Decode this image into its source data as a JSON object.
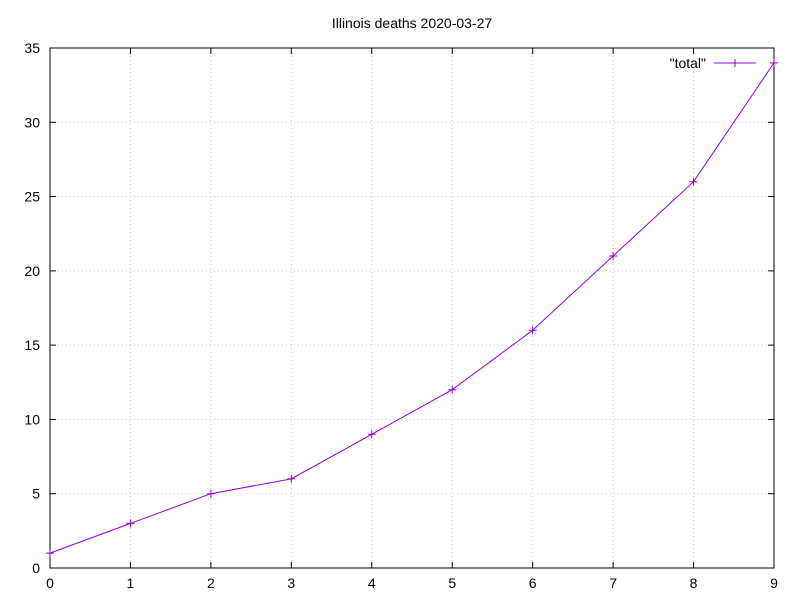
{
  "chart_data": {
    "type": "line",
    "title": "Illinois deaths 2020-03-27",
    "xlabel": "",
    "ylabel": "",
    "xlim": [
      0,
      9
    ],
    "ylim": [
      0,
      35
    ],
    "x_ticks": [
      0,
      1,
      2,
      3,
      4,
      5,
      6,
      7,
      8,
      9
    ],
    "y_ticks": [
      0,
      5,
      10,
      15,
      20,
      25,
      30,
      35
    ],
    "grid": true,
    "legend_position": "top-right",
    "x": [
      0,
      1,
      2,
      3,
      4,
      5,
      6,
      7,
      8,
      9
    ],
    "series": [
      {
        "name": "\"total\"",
        "color": "#9400d3",
        "marker": "plus",
        "values": [
          1,
          3,
          5,
          6,
          9,
          12,
          16,
          21,
          26,
          34
        ]
      }
    ]
  }
}
